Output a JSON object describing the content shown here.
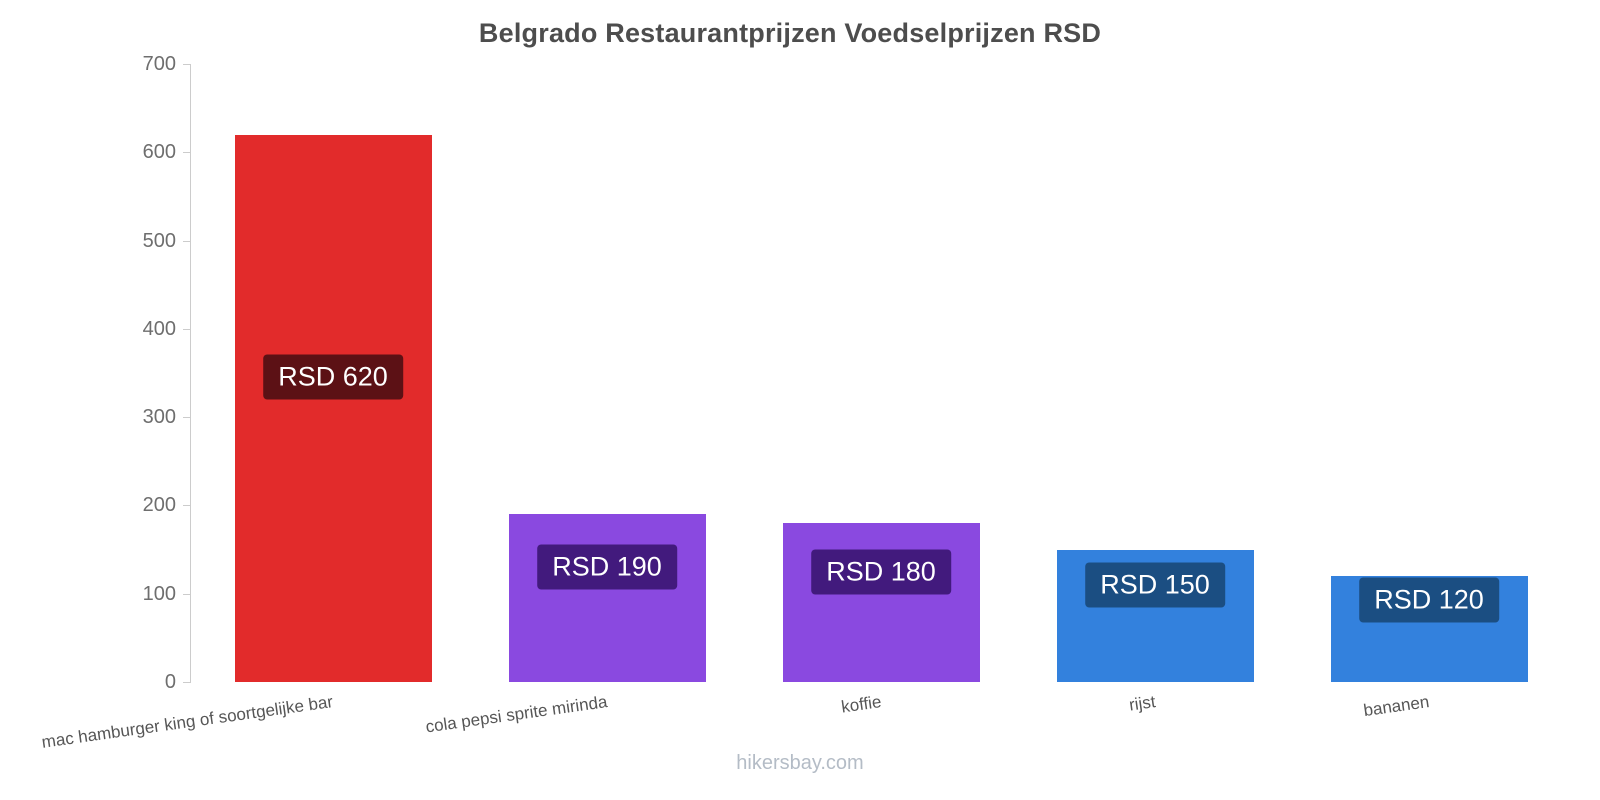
{
  "title": "Belgrado Restaurantprijzen Voedselprijzen RSD",
  "footer": {
    "link_label": "hikersbay.com"
  },
  "chart_data": {
    "type": "bar",
    "title": "Belgrado Restaurantprijzen Voedselprijzen RSD",
    "categories": [
      "mac hamburger king of soortgelijke bar",
      "cola pepsi sprite mirinda",
      "koffie",
      "rijst",
      "bananen"
    ],
    "values": [
      620,
      190,
      180,
      150,
      120
    ],
    "value_labels": [
      "RSD 620",
      "RSD 190",
      "RSD 180",
      "RSD 150",
      "RSD 120"
    ],
    "currency": "RSD",
    "ylim": [
      0,
      700
    ],
    "yticks": [
      0,
      100,
      200,
      300,
      400,
      500,
      600,
      700
    ],
    "bar_colors": [
      "#e22b2b",
      "#8a49e0",
      "#8a49e0",
      "#3381dd",
      "#3381dd"
    ],
    "label_bg_colors": [
      "#5c1115",
      "#421a7d",
      "#421a7d",
      "#1b4e82",
      "#1b4e82"
    ],
    "grid": false,
    "legend_position": "none"
  }
}
